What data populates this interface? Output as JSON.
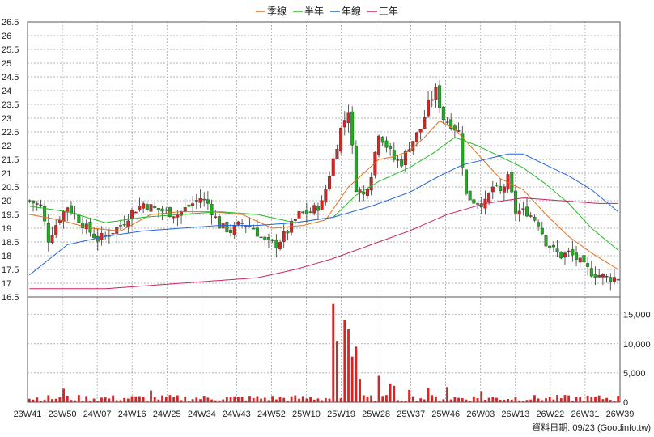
{
  "chart_data": {
    "type": "candlestick-with-volume",
    "legend": [
      {
        "name": "季線",
        "color": "#e07020"
      },
      {
        "name": "半年",
        "color": "#22bb22"
      },
      {
        "name": "年線",
        "color": "#2266dd"
      },
      {
        "name": "三年",
        "color": "#cc2266"
      }
    ],
    "price_axis": {
      "min": 16.5,
      "max": 26.5,
      "ticks": [
        "16.5",
        "17",
        "17.5",
        "18",
        "18.5",
        "19",
        "19.5",
        "20",
        "20.5",
        "21",
        "21.5",
        "22",
        "22.5",
        "23",
        "23.5",
        "24",
        "24.5",
        "25",
        "25.5",
        "26",
        "26.5"
      ]
    },
    "volume_axis": {
      "min": 0,
      "max": 18000,
      "ticks": [
        "0",
        "5,000",
        "10,000",
        "15,000"
      ]
    },
    "x_labels": [
      "23W41",
      "23W50",
      "24W07",
      "24W16",
      "24W25",
      "24W34",
      "24W43",
      "24W52",
      "25W10",
      "25W19",
      "25W28",
      "25W37",
      "25W46",
      "26W03",
      "26W13",
      "26W22",
      "26W31",
      "26W39"
    ],
    "grid": true,
    "source_note": "資料日期: 09/23  (Goodinfo.tw)",
    "colors": {
      "up": "#dd2222",
      "down": "#22aa22",
      "volume": "#dd2222",
      "grid": "#999999"
    },
    "weeks": 156,
    "close_anchors": [
      [
        0,
        20.0
      ],
      [
        3,
        19.8
      ],
      [
        5,
        18.6
      ],
      [
        8,
        19.4
      ],
      [
        10,
        19.8
      ],
      [
        12,
        19.5
      ],
      [
        15,
        19.0
      ],
      [
        18,
        18.6
      ],
      [
        21,
        18.8
      ],
      [
        24,
        19.1
      ],
      [
        27,
        19.6
      ],
      [
        30,
        19.9
      ],
      [
        33,
        19.7
      ],
      [
        36,
        19.6
      ],
      [
        39,
        19.5
      ],
      [
        42,
        19.8
      ],
      [
        45,
        20.1
      ],
      [
        47,
        19.9
      ],
      [
        50,
        19.1
      ],
      [
        53,
        18.9
      ],
      [
        56,
        19.2
      ],
      [
        59,
        19.0
      ],
      [
        62,
        18.5
      ],
      [
        65,
        18.4
      ],
      [
        68,
        18.9
      ],
      [
        71,
        19.5
      ],
      [
        74,
        19.6
      ],
      [
        77,
        19.9
      ],
      [
        80,
        21.5
      ],
      [
        82,
        22.6
      ],
      [
        84,
        23.3
      ],
      [
        86,
        20.5
      ],
      [
        88,
        20.2
      ],
      [
        90,
        21.0
      ],
      [
        92,
        22.5
      ],
      [
        94,
        22.0
      ],
      [
        96,
        21.5
      ],
      [
        98,
        21.4
      ],
      [
        100,
        22.0
      ],
      [
        103,
        22.6
      ],
      [
        105,
        23.5
      ],
      [
        107,
        24.0
      ],
      [
        109,
        23.0
      ],
      [
        111,
        22.8
      ],
      [
        113,
        22.5
      ],
      [
        115,
        20.2
      ],
      [
        117,
        20.0
      ],
      [
        120,
        19.9
      ],
      [
        122,
        20.5
      ],
      [
        124,
        20.3
      ],
      [
        126,
        20.8
      ],
      [
        128,
        19.6
      ],
      [
        131,
        19.6
      ],
      [
        134,
        19.2
      ],
      [
        136,
        18.5
      ],
      [
        138,
        18.2
      ],
      [
        140,
        18.0
      ],
      [
        142,
        18.1
      ],
      [
        144,
        17.9
      ],
      [
        146,
        17.6
      ],
      [
        148,
        17.4
      ],
      [
        150,
        17.3
      ],
      [
        152,
        17.2
      ],
      [
        155,
        17.2
      ]
    ],
    "ma": {
      "季線": [
        [
          0,
          19.5
        ],
        [
          8,
          19.3
        ],
        [
          16,
          19.0
        ],
        [
          24,
          18.9
        ],
        [
          32,
          19.5
        ],
        [
          40,
          19.6
        ],
        [
          48,
          19.6
        ],
        [
          56,
          19.5
        ],
        [
          64,
          19.0
        ],
        [
          72,
          19.1
        ],
        [
          78,
          19.3
        ],
        [
          84,
          20.5
        ],
        [
          88,
          21.0
        ],
        [
          92,
          21.5
        ],
        [
          96,
          21.6
        ],
        [
          100,
          21.8
        ],
        [
          104,
          22.3
        ],
        [
          108,
          22.9
        ],
        [
          112,
          22.6
        ],
        [
          118,
          21.7
        ],
        [
          124,
          20.8
        ],
        [
          130,
          20.4
        ],
        [
          136,
          19.5
        ],
        [
          142,
          18.7
        ],
        [
          148,
          18.1
        ],
        [
          155,
          17.5
        ]
      ],
      "半年": [
        [
          0,
          19.8
        ],
        [
          10,
          19.6
        ],
        [
          20,
          19.2
        ],
        [
          30,
          19.4
        ],
        [
          40,
          19.5
        ],
        [
          50,
          19.6
        ],
        [
          60,
          19.5
        ],
        [
          70,
          19.2
        ],
        [
          80,
          19.4
        ],
        [
          86,
          20.2
        ],
        [
          92,
          20.7
        ],
        [
          100,
          21.2
        ],
        [
          106,
          21.7
        ],
        [
          112,
          22.3
        ],
        [
          118,
          22.0
        ],
        [
          124,
          21.6
        ],
        [
          130,
          21.2
        ],
        [
          136,
          20.6
        ],
        [
          142,
          19.9
        ],
        [
          148,
          19.0
        ],
        [
          155,
          18.2
        ]
      ],
      "年線": [
        [
          0,
          17.3
        ],
        [
          10,
          18.4
        ],
        [
          20,
          18.7
        ],
        [
          30,
          18.9
        ],
        [
          40,
          19.0
        ],
        [
          50,
          19.1
        ],
        [
          60,
          19.1
        ],
        [
          70,
          19.2
        ],
        [
          80,
          19.4
        ],
        [
          90,
          19.8
        ],
        [
          100,
          20.3
        ],
        [
          108,
          20.9
        ],
        [
          114,
          21.3
        ],
        [
          120,
          21.5
        ],
        [
          126,
          21.7
        ],
        [
          130,
          21.7
        ],
        [
          136,
          21.3
        ],
        [
          142,
          20.9
        ],
        [
          148,
          20.4
        ],
        [
          155,
          19.6
        ]
      ],
      "三年": [
        [
          0,
          16.8
        ],
        [
          20,
          16.8
        ],
        [
          40,
          17.0
        ],
        [
          60,
          17.2
        ],
        [
          70,
          17.5
        ],
        [
          80,
          17.9
        ],
        [
          90,
          18.4
        ],
        [
          100,
          18.9
        ],
        [
          110,
          19.5
        ],
        [
          120,
          19.9
        ],
        [
          130,
          20.1
        ],
        [
          140,
          20.0
        ],
        [
          150,
          19.9
        ],
        [
          155,
          19.9
        ]
      ]
    },
    "volume_spikes": [
      [
        9,
        2300
      ],
      [
        32,
        2000
      ],
      [
        80,
        16800
      ],
      [
        81,
        10500
      ],
      [
        83,
        14000
      ],
      [
        84,
        12500
      ],
      [
        86,
        9500
      ],
      [
        85,
        7800
      ],
      [
        87,
        4000
      ],
      [
        92,
        4500
      ],
      [
        95,
        3200
      ],
      [
        96,
        2800
      ],
      [
        100,
        2100
      ],
      [
        105,
        2400
      ],
      [
        110,
        2600
      ],
      [
        119,
        1900
      ]
    ]
  }
}
